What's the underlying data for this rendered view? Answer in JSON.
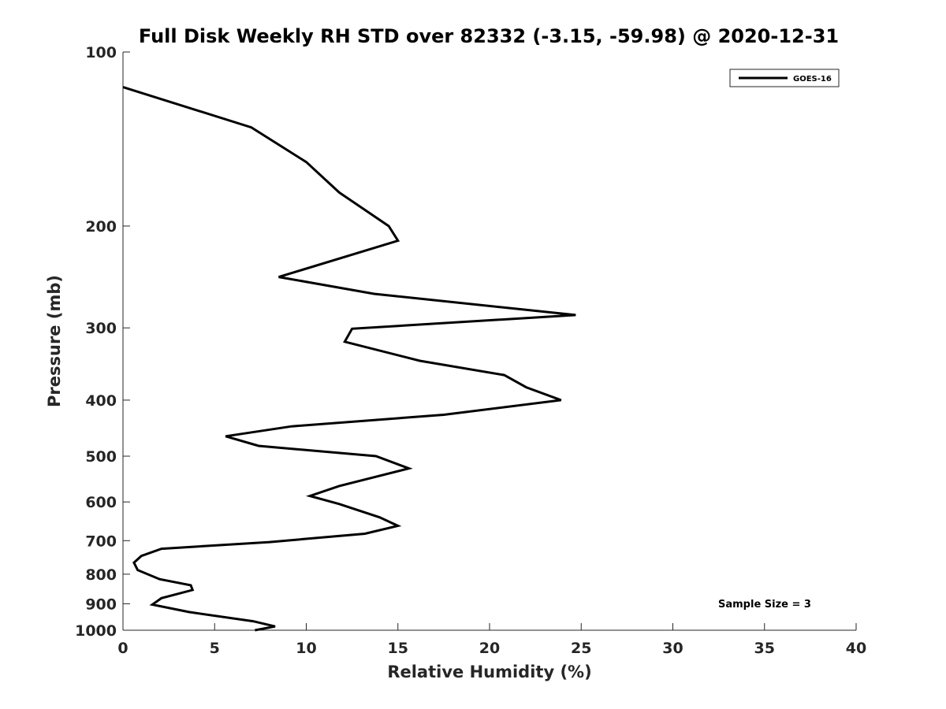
{
  "chart_data": {
    "type": "line",
    "title": "Full Disk Weekly RH STD over 82332 (-3.15, -59.98) @ 2020-12-31",
    "xlabel": "Relative Humidity (%)",
    "ylabel": "Pressure (mb)",
    "xlim": [
      0,
      40
    ],
    "ylim": [
      1000,
      100
    ],
    "yscale": "log",
    "xticks": [
      "0",
      "5",
      "10",
      "15",
      "20",
      "25",
      "30",
      "35",
      "40"
    ],
    "yticks": [
      "100",
      "200",
      "300",
      "400",
      "500",
      "600",
      "700",
      "800",
      "900",
      "1000"
    ],
    "grid": false,
    "legend": {
      "placement": "top-right",
      "entries": [
        "GOES-16"
      ]
    },
    "annotation": "Sample Size = 3",
    "series": [
      {
        "name": "GOES-16",
        "color": "#000000",
        "points": [
          [
            0.0,
            115
          ],
          [
            7.0,
            135
          ],
          [
            10.0,
            155
          ],
          [
            11.8,
            175
          ],
          [
            14.5,
            200
          ],
          [
            15.0,
            212
          ],
          [
            8.5,
            245
          ],
          [
            13.7,
            262
          ],
          [
            24.7,
            285
          ],
          [
            12.5,
            301
          ],
          [
            12.1,
            317
          ],
          [
            16.2,
            342
          ],
          [
            20.8,
            362
          ],
          [
            22.0,
            380
          ],
          [
            23.9,
            400
          ],
          [
            17.5,
            424
          ],
          [
            9.2,
            444
          ],
          [
            5.6,
            462
          ],
          [
            7.4,
            480
          ],
          [
            13.8,
            500
          ],
          [
            15.6,
            525
          ],
          [
            11.8,
            563
          ],
          [
            10.2,
            586
          ],
          [
            11.8,
            605
          ],
          [
            14.0,
            638
          ],
          [
            15.0,
            660
          ],
          [
            13.2,
            681
          ],
          [
            8.0,
            704
          ],
          [
            2.1,
            723
          ],
          [
            1.0,
            744
          ],
          [
            0.6,
            764
          ],
          [
            0.8,
            787
          ],
          [
            2.0,
            816
          ],
          [
            3.7,
            836
          ],
          [
            3.8,
            852
          ],
          [
            2.1,
            880
          ],
          [
            1.6,
            903
          ],
          [
            3.6,
            930
          ],
          [
            7.1,
            965
          ],
          [
            8.3,
            985
          ],
          [
            7.2,
            1000
          ]
        ]
      }
    ]
  }
}
